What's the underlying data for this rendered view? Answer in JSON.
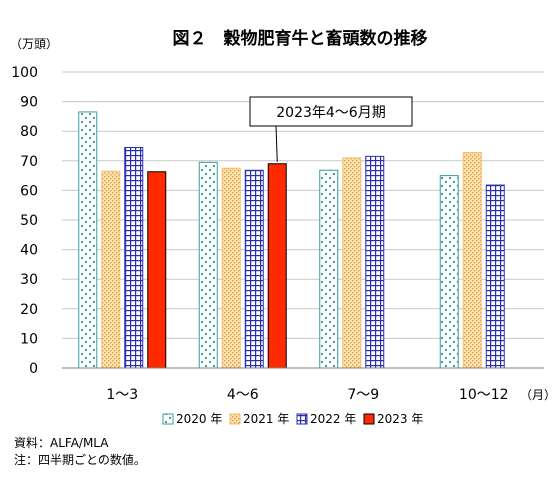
{
  "chart_data": {
    "type": "bar",
    "title": "図２　穀物肥育牛と畜頭数の推移",
    "ylabel": "（万頭）",
    "xlabel": "（月）",
    "ylim": [
      0,
      100
    ],
    "yticks": [
      0,
      10,
      20,
      30,
      40,
      50,
      60,
      70,
      80,
      90,
      100
    ],
    "categories": [
      "1〜3",
      "4〜6",
      "7〜9",
      "10〜12"
    ],
    "series": [
      {
        "name": "2020 年",
        "color": "#3a9e9e",
        "pattern": "dots",
        "values": [
          86.5,
          69.5,
          66.8,
          65.0
        ]
      },
      {
        "name": "2021 年",
        "color": "#f4c06b",
        "pattern": "fine-dots",
        "values": [
          66.5,
          67.5,
          71.0,
          72.8
        ]
      },
      {
        "name": "2022 年",
        "color": "#2b2fae",
        "pattern": "grid",
        "values": [
          74.5,
          66.8,
          71.5,
          61.8
        ]
      },
      {
        "name": "2023 年",
        "color": "#ff2a00",
        "pattern": "solid",
        "values": [
          66.3,
          69.0,
          null,
          null
        ]
      }
    ],
    "grid": true,
    "legend": "bottom",
    "annotation": {
      "text": "2023年4〜6月期",
      "series": 3,
      "category": 1
    }
  },
  "notes": {
    "source": "資料：ALFA/MLA",
    "note": "注：四半期ごとの数値。"
  }
}
